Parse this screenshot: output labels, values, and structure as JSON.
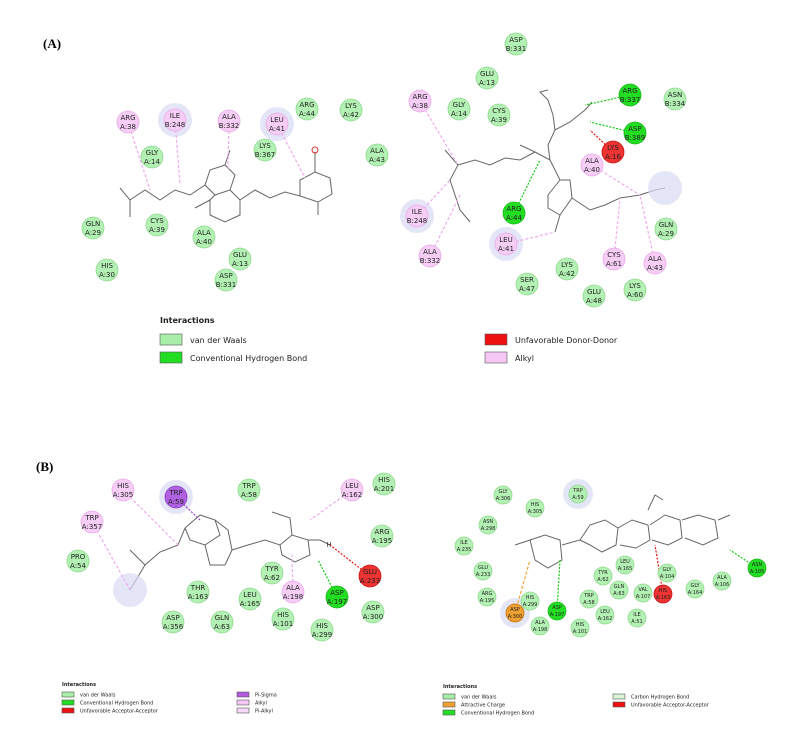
{
  "panels": {
    "A": {
      "label": "(A)",
      "left": {
        "residues": [
          {
            "name": "ARG",
            "id": "A:38",
            "type": "alkyl"
          },
          {
            "name": "ILE",
            "id": "B:248",
            "type": "alkyl"
          },
          {
            "name": "ALA",
            "id": "B:332",
            "type": "alkyl"
          },
          {
            "name": "LEU",
            "id": "A:41",
            "type": "alkyl"
          },
          {
            "name": "ARG",
            "id": "A:44",
            "type": "vdw"
          },
          {
            "name": "LYS",
            "id": "A:42",
            "type": "vdw"
          },
          {
            "name": "GLY",
            "id": "A:14",
            "type": "vdw"
          },
          {
            "name": "LYS",
            "id": "B:367",
            "type": "vdw"
          },
          {
            "name": "ALA",
            "id": "A:43",
            "type": "vdw"
          },
          {
            "name": "GLN",
            "id": "A:29",
            "type": "vdw"
          },
          {
            "name": "CYS",
            "id": "A:39",
            "type": "vdw"
          },
          {
            "name": "ALA",
            "id": "A:40",
            "type": "vdw"
          },
          {
            "name": "GLU",
            "id": "A:13",
            "type": "vdw"
          },
          {
            "name": "HIS",
            "id": "A:30",
            "type": "vdw"
          },
          {
            "name": "ASP",
            "id": "B:331",
            "type": "vdw"
          }
        ]
      },
      "right": {
        "residues": [
          {
            "name": "ASP",
            "id": "B:331",
            "type": "vdw"
          },
          {
            "name": "GLU",
            "id": "A:13",
            "type": "vdw"
          },
          {
            "name": "ARG",
            "id": "A:38",
            "type": "alkyl"
          },
          {
            "name": "GLY",
            "id": "A:14",
            "type": "vdw"
          },
          {
            "name": "CYS",
            "id": "A:39",
            "type": "vdw"
          },
          {
            "name": "ARG",
            "id": "B:337",
            "type": "hbond"
          },
          {
            "name": "ASN",
            "id": "B:334",
            "type": "vdw"
          },
          {
            "name": "ASP",
            "id": "B:389",
            "type": "hbond"
          },
          {
            "name": "LYS",
            "id": "A:16",
            "type": "unfav"
          },
          {
            "name": "ALA",
            "id": "A:40",
            "type": "alkyl"
          },
          {
            "name": "ARG",
            "id": "A:44",
            "type": "hbond"
          },
          {
            "name": "ILE",
            "id": "B:248",
            "type": "alkyl"
          },
          {
            "name": "LEU",
            "id": "A:41",
            "type": "alkyl"
          },
          {
            "name": "GLN",
            "id": "A:29",
            "type": "vdw"
          },
          {
            "name": "ALA",
            "id": "B:332",
            "type": "alkyl"
          },
          {
            "name": "LYS",
            "id": "A:42",
            "type": "vdw"
          },
          {
            "name": "CYS",
            "id": "A:61",
            "type": "alkyl"
          },
          {
            "name": "ALA",
            "id": "A:43",
            "type": "alkyl"
          },
          {
            "name": "SER",
            "id": "A:47",
            "type": "vdw"
          },
          {
            "name": "GLU",
            "id": "A:48",
            "type": "vdw"
          },
          {
            "name": "LYS",
            "id": "A:60",
            "type": "vdw"
          }
        ]
      },
      "legend": {
        "title": "Interactions",
        "items": [
          {
            "label": "van der Waals",
            "color": "#a8eda8"
          },
          {
            "label": "Conventional Hydrogen Bond",
            "color": "#22dd22"
          },
          {
            "label": "Unfavorable Donor-Donor",
            "color": "#ee1111"
          },
          {
            "label": "Alkyl",
            "color": "#f5c8f5"
          }
        ]
      }
    },
    "B": {
      "label": "(B)",
      "left": {
        "residues": [
          {
            "name": "HIS",
            "id": "A:305",
            "type": "alkyl"
          },
          {
            "name": "TRP",
            "id": "A:59",
            "type": "pisigma"
          },
          {
            "name": "TRP",
            "id": "A:58",
            "type": "vdw"
          },
          {
            "name": "LEU",
            "id": "A:162",
            "type": "alkyl"
          },
          {
            "name": "HIS",
            "id": "A:201",
            "type": "vdw"
          },
          {
            "name": "TRP",
            "id": "A:357",
            "type": "alkyl"
          },
          {
            "name": "ARG",
            "id": "A:195",
            "type": "vdw"
          },
          {
            "name": "PRO",
            "id": "A:54",
            "type": "vdw"
          },
          {
            "name": "GLU",
            "id": "A:233",
            "type": "unfav"
          },
          {
            "name": "TYR",
            "id": "A:62",
            "type": "vdw"
          },
          {
            "name": "ALA",
            "id": "A:198",
            "type": "alkyl"
          },
          {
            "name": "THR",
            "id": "A:163",
            "type": "vdw"
          },
          {
            "name": "ASP",
            "id": "A:197",
            "type": "hbond"
          },
          {
            "name": "LEU",
            "id": "A:165",
            "type": "vdw"
          },
          {
            "name": "ASP",
            "id": "A:300",
            "type": "vdw"
          },
          {
            "name": "HIS",
            "id": "A:101",
            "type": "vdw"
          },
          {
            "name": "HIS",
            "id": "A:299",
            "type": "vdw"
          },
          {
            "name": "ASP",
            "id": "A:356",
            "type": "vdw"
          },
          {
            "name": "GLN",
            "id": "A:63",
            "type": "vdw"
          }
        ],
        "atom_label": "H"
      },
      "right": {
        "residues": [
          {
            "name": "GLY",
            "id": "A:306",
            "type": "vdw"
          },
          {
            "name": "HIS",
            "id": "A:305",
            "type": "vdw"
          },
          {
            "name": "TRP",
            "id": "A:59",
            "type": "vdw"
          },
          {
            "name": "ASN",
            "id": "A:298",
            "type": "vdw"
          },
          {
            "name": "ILE",
            "id": "A:235",
            "type": "vdw"
          },
          {
            "name": "GLU",
            "id": "A:233",
            "type": "vdw"
          },
          {
            "name": "LEU",
            "id": "A:165",
            "type": "vdw"
          },
          {
            "name": "TYR",
            "id": "A:62",
            "type": "vdw"
          },
          {
            "name": "GLY",
            "id": "A:104",
            "type": "vdw"
          },
          {
            "name": "ALA",
            "id": "A:106",
            "type": "vdw"
          },
          {
            "name": "ASN",
            "id": "A:105",
            "type": "hbond"
          },
          {
            "name": "ARG",
            "id": "A:195",
            "type": "vdw"
          },
          {
            "name": "HIS",
            "id": "A:299",
            "type": "vdw"
          },
          {
            "name": "ASP",
            "id": "A:300",
            "type": "attractive"
          },
          {
            "name": "ASP",
            "id": "A:197",
            "type": "hbond"
          },
          {
            "name": "TRP",
            "id": "A:58",
            "type": "vdw"
          },
          {
            "name": "GLN",
            "id": "A:63",
            "type": "vdw"
          },
          {
            "name": "VAL",
            "id": "A:107",
            "type": "vdw"
          },
          {
            "name": "HIS",
            "id": "A:163",
            "type": "unfav"
          },
          {
            "name": "GLY",
            "id": "A:164",
            "type": "vdw"
          },
          {
            "name": "ALA",
            "id": "A:198",
            "type": "vdw"
          },
          {
            "name": "HIS",
            "id": "A:101",
            "type": "vdw"
          },
          {
            "name": "LEU",
            "id": "A:162",
            "type": "vdw"
          },
          {
            "name": "ILE",
            "id": "A:51",
            "type": "vdw"
          }
        ]
      },
      "legend_left": {
        "title": "Interactions",
        "items": [
          {
            "label": "van der Waals",
            "color": "#a8eda8"
          },
          {
            "label": "Conventional Hydrogen Bond",
            "color": "#22dd22"
          },
          {
            "label": "Unfavorable Acceptor-Acceptor",
            "color": "#ee1111"
          },
          {
            "label": "Pi-Sigma",
            "color": "#b45ae0"
          },
          {
            "label": "Alkyl",
            "color": "#f5c8f5"
          },
          {
            "label": "Pi-Alkyl",
            "color": "#f7d9f7"
          }
        ]
      },
      "legend_right": {
        "title": "Interactions",
        "items": [
          {
            "label": "van der Waals",
            "color": "#a8eda8"
          },
          {
            "label": "Attractive Charge",
            "color": "#f0a030"
          },
          {
            "label": "Conventional Hydrogen Bond",
            "color": "#22dd22"
          },
          {
            "label": "Carbon Hydrogen Bond",
            "color": "#d8f5d8"
          },
          {
            "label": "Unfavorable Acceptor-Acceptor",
            "color": "#ee1111"
          }
        ]
      }
    }
  },
  "colors": {
    "vdw": "#b3f0b3",
    "vdw_stroke": "#8fd98f",
    "hbond": "#22dd22",
    "alkyl": "#f5cdf5",
    "alkyl_stroke": "#e8a8e8",
    "unfav": "#ee3333",
    "pisigma": "#b060e0",
    "attractive": "#f0a030",
    "halo": "#d9dcf5"
  }
}
